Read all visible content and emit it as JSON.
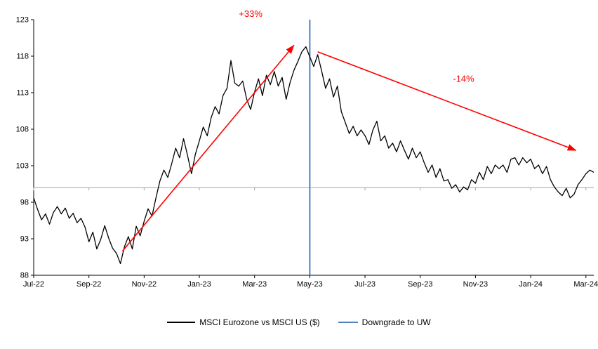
{
  "chart_data": {
    "type": "line",
    "title": "",
    "xlabel": "",
    "ylabel": "",
    "ylim": [
      88,
      123
    ],
    "y_ticks": [
      88,
      93,
      98,
      103,
      108,
      113,
      118,
      123
    ],
    "x_tick_labels": [
      "Jul-22",
      "Sep-22",
      "Nov-22",
      "Jan-23",
      "Mar-23",
      "May-23",
      "Jul-23",
      "Sep-23",
      "Nov-23",
      "Jan-24",
      "Mar-24"
    ],
    "x_tick_step": 14,
    "x_max_index": 142,
    "baseline_value": 100,
    "baseline_color": "#a6a6a6",
    "grid": false,
    "legend_position": "bottom",
    "series": [
      {
        "name": "MSCI Eurozone vs MSCI US ($)",
        "color": "#000000",
        "values": [
          98.6,
          97.0,
          95.6,
          96.4,
          95.0,
          96.6,
          97.4,
          96.4,
          97.2,
          95.8,
          96.5,
          95.2,
          95.8,
          94.6,
          92.6,
          93.9,
          91.6,
          92.9,
          94.8,
          93.1,
          91.7,
          91.0,
          89.6,
          91.9,
          93.3,
          91.6,
          94.7,
          93.4,
          95.4,
          97.1,
          96.1,
          98.6,
          100.9,
          102.4,
          101.4,
          103.3,
          105.4,
          104.1,
          106.7,
          104.4,
          101.9,
          104.6,
          106.4,
          108.3,
          107.1,
          109.6,
          111.1,
          110.1,
          112.6,
          113.6,
          117.4,
          114.3,
          113.9,
          114.6,
          112.1,
          110.7,
          113.1,
          114.9,
          112.6,
          115.4,
          114.1,
          115.9,
          113.9,
          115.1,
          112.1,
          114.4,
          116.1,
          117.3,
          118.6,
          119.3,
          117.9,
          116.6,
          118.2,
          116.0,
          113.6,
          114.9,
          112.4,
          113.9,
          110.4,
          108.9,
          107.4,
          108.4,
          107.1,
          107.9,
          107.1,
          105.9,
          107.9,
          109.1,
          106.4,
          107.1,
          105.4,
          106.1,
          104.9,
          106.4,
          105.1,
          103.9,
          105.4,
          104.1,
          104.9,
          103.4,
          102.1,
          103.1,
          101.4,
          102.6,
          100.9,
          101.1,
          99.9,
          100.4,
          99.4,
          100.1,
          99.7,
          101.1,
          100.6,
          102.1,
          101.1,
          102.9,
          101.9,
          103.1,
          102.6,
          103.1,
          102.1,
          103.9,
          104.1,
          103.1,
          104.1,
          103.4,
          103.9,
          102.6,
          103.1,
          101.9,
          102.9,
          101.1,
          100.1,
          99.4,
          98.9,
          99.9,
          98.6,
          99.1,
          100.4,
          101.1,
          101.9,
          102.4,
          102.1
        ]
      }
    ],
    "event_line": {
      "label": "Downgrade to UW",
      "color": "#4f81bd",
      "x_index": 70
    },
    "annotations": [
      {
        "text": "+33%",
        "color": "#ff0000",
        "arrow_from": {
          "x": 22.5,
          "y": 91.3
        },
        "arrow_to": {
          "x": 66,
          "y": 119.5
        },
        "label_at": {
          "x": 55,
          "y": 123.4
        }
      },
      {
        "text": "-14%",
        "color": "#ff0000",
        "arrow_from": {
          "x": 72,
          "y": 118.6
        },
        "arrow_to": {
          "x": 137.5,
          "y": 105.1
        },
        "label_at": {
          "x": 109,
          "y": 114.5
        }
      }
    ],
    "legend": [
      {
        "label": "MSCI Eurozone vs MSCI US ($)",
        "color": "#000000"
      },
      {
        "label": "Downgrade to UW",
        "color": "#4f81bd"
      }
    ]
  }
}
